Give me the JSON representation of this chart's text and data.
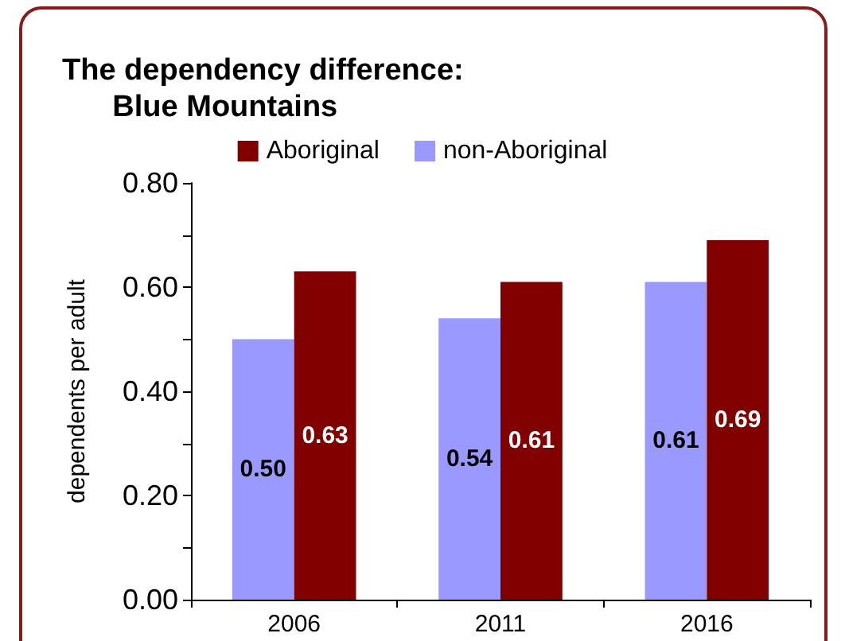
{
  "chart_data": {
    "type": "bar",
    "title": "The dependency difference:\n      Blue Mountains",
    "ylabel": "dependents per adult",
    "categories": [
      "2006",
      "2011",
      "2016"
    ],
    "series": [
      {
        "name": "non-Aboriginal",
        "color": "#9999ff",
        "values": [
          0.5,
          0.54,
          0.61
        ],
        "value_labels": [
          "0.50",
          "0.54",
          "0.61"
        ]
      },
      {
        "name": "Aboriginal",
        "color": "#800000",
        "values": [
          0.63,
          0.61,
          0.69
        ],
        "value_labels": [
          "0.63",
          "0.61",
          "0.69"
        ]
      }
    ],
    "ylim": [
      0,
      0.8
    ],
    "yticks": [
      {
        "value": 0,
        "label": "0.00"
      },
      {
        "value": 0.1,
        "label": null
      },
      {
        "value": 0.2,
        "label": "0.20"
      },
      {
        "value": 0.3,
        "label": null
      },
      {
        "value": 0.4,
        "label": "0.40"
      },
      {
        "value": 0.5,
        "label": null
      },
      {
        "value": 0.6,
        "label": "0.60"
      },
      {
        "value": 0.7,
        "label": null
      },
      {
        "value": 0.8,
        "label": "0.80"
      }
    ],
    "legend": "top",
    "grid": false
  }
}
